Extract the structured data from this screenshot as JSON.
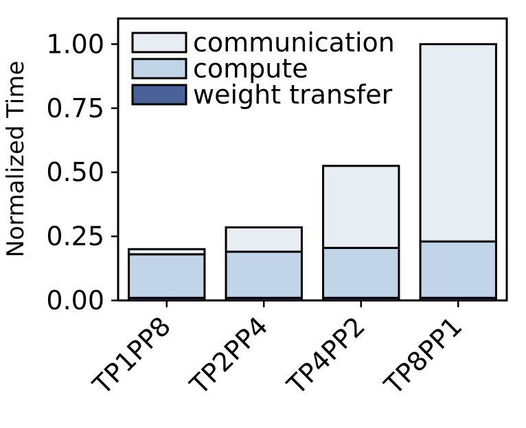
{
  "chart_data": {
    "type": "bar",
    "stacked": true,
    "categories": [
      "TP1PP8",
      "TP2PP4",
      "TP4PP2",
      "TP8PP1"
    ],
    "series": [
      {
        "name": "weight transfer",
        "values": [
          0.01,
          0.01,
          0.01,
          0.01
        ],
        "color": "#4a6298"
      },
      {
        "name": "compute",
        "values": [
          0.17,
          0.18,
          0.195,
          0.22
        ],
        "color": "#c2d5e8"
      },
      {
        "name": "communication",
        "values": [
          0.02,
          0.095,
          0.32,
          0.77
        ],
        "color": "#e8edf4"
      }
    ],
    "ylabel": "Normalized Time",
    "ylim": [
      0,
      1.1
    ],
    "yticks": [
      "0.00",
      "0.25",
      "0.50",
      "0.75",
      "1.00"
    ],
    "ytick_values": [
      0,
      0.25,
      0.5,
      0.75,
      1.0
    ],
    "legend": {
      "placement": "top-left",
      "entries": [
        "communication",
        "compute",
        "weight transfer"
      ]
    },
    "grid": false
  }
}
